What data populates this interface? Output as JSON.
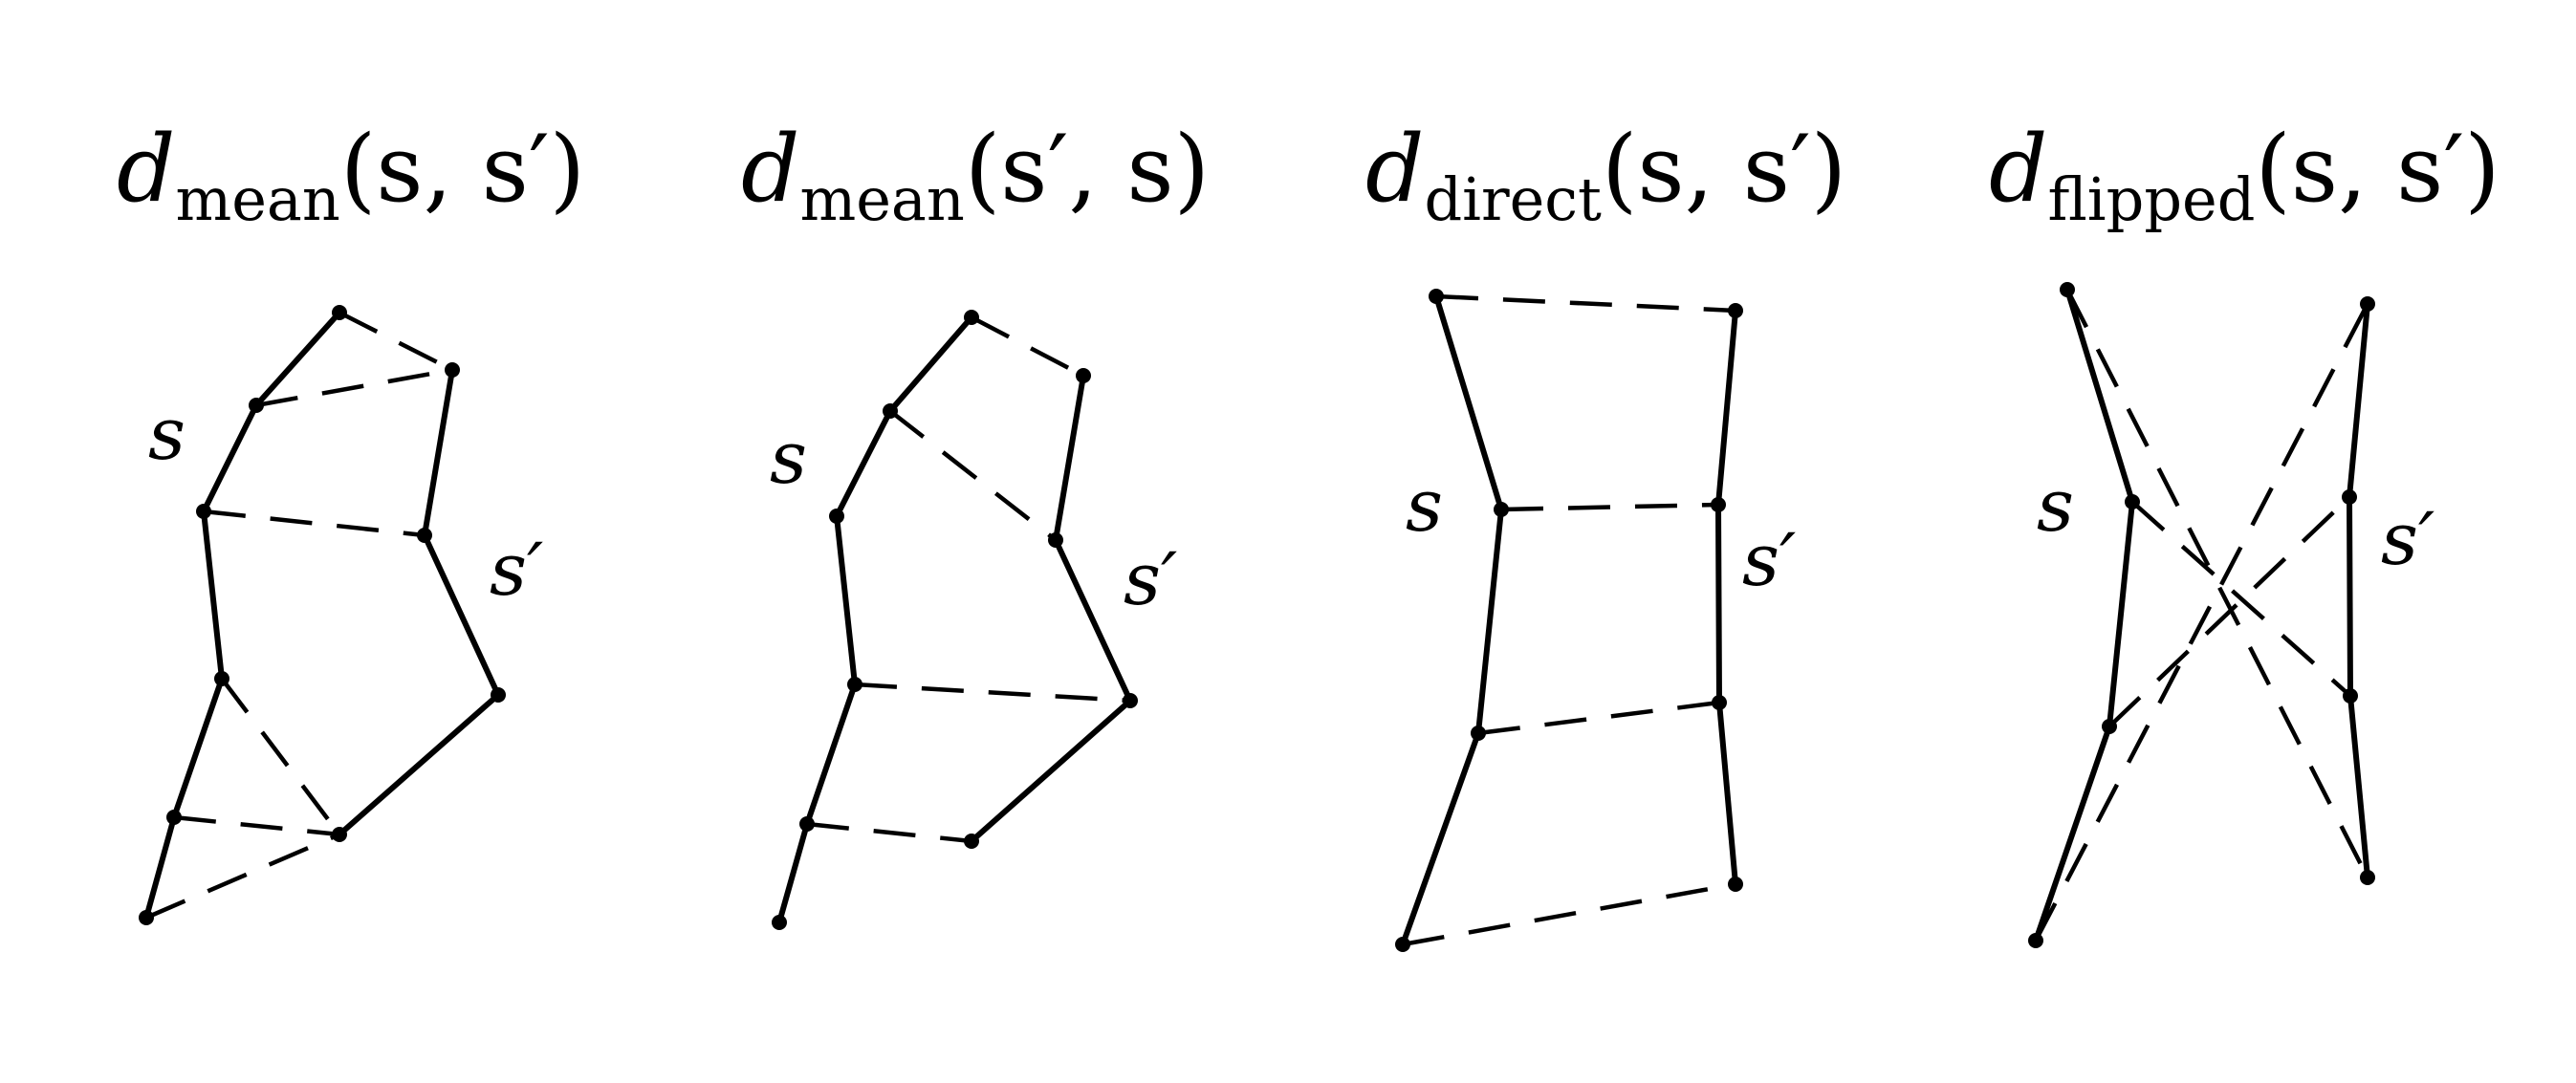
{
  "panels": [
    {
      "symbol": "d",
      "subscript": "mean",
      "args": "(s, s′)",
      "label_s": "s",
      "label_s_prime": "s′"
    },
    {
      "symbol": "d",
      "subscript": "mean",
      "args": "(s′, s)",
      "label_s": "s",
      "label_s_prime": "s′"
    },
    {
      "symbol": "d",
      "subscript": "direct",
      "args": "(s, s′)",
      "label_s": "s",
      "label_s_prime": "s′"
    },
    {
      "symbol": "d",
      "subscript": "flipped",
      "args": "(s, s′)",
      "label_s": "s",
      "label_s_prime": "s′"
    }
  ]
}
